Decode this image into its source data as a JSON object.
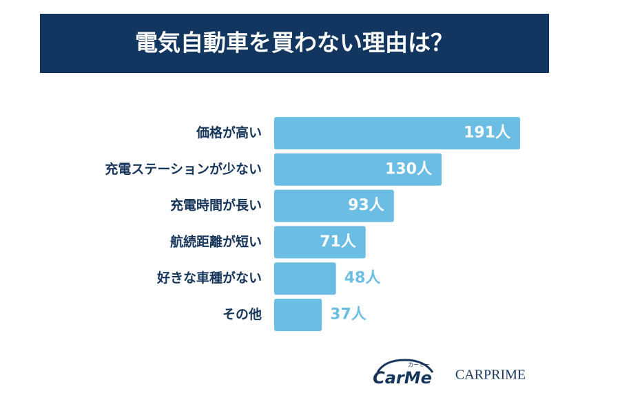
{
  "chart_data": {
    "type": "bar",
    "orientation": "horizontal",
    "title": "電気自動車を買わない理由は？",
    "categories": [
      "価格が高い",
      "充電ステーションが少ない",
      "充電時間が長い",
      "航続距離が短い",
      "好きな車種がない",
      "その他"
    ],
    "values": [
      191,
      130,
      93,
      71,
      48,
      37
    ],
    "value_labels": [
      "191人",
      "130人",
      "93人",
      "71人",
      "48人",
      "37人"
    ],
    "color": "#6cbde4",
    "logos": [
      "CarMe",
      "カーミー",
      "CARPRIME"
    ]
  }
}
